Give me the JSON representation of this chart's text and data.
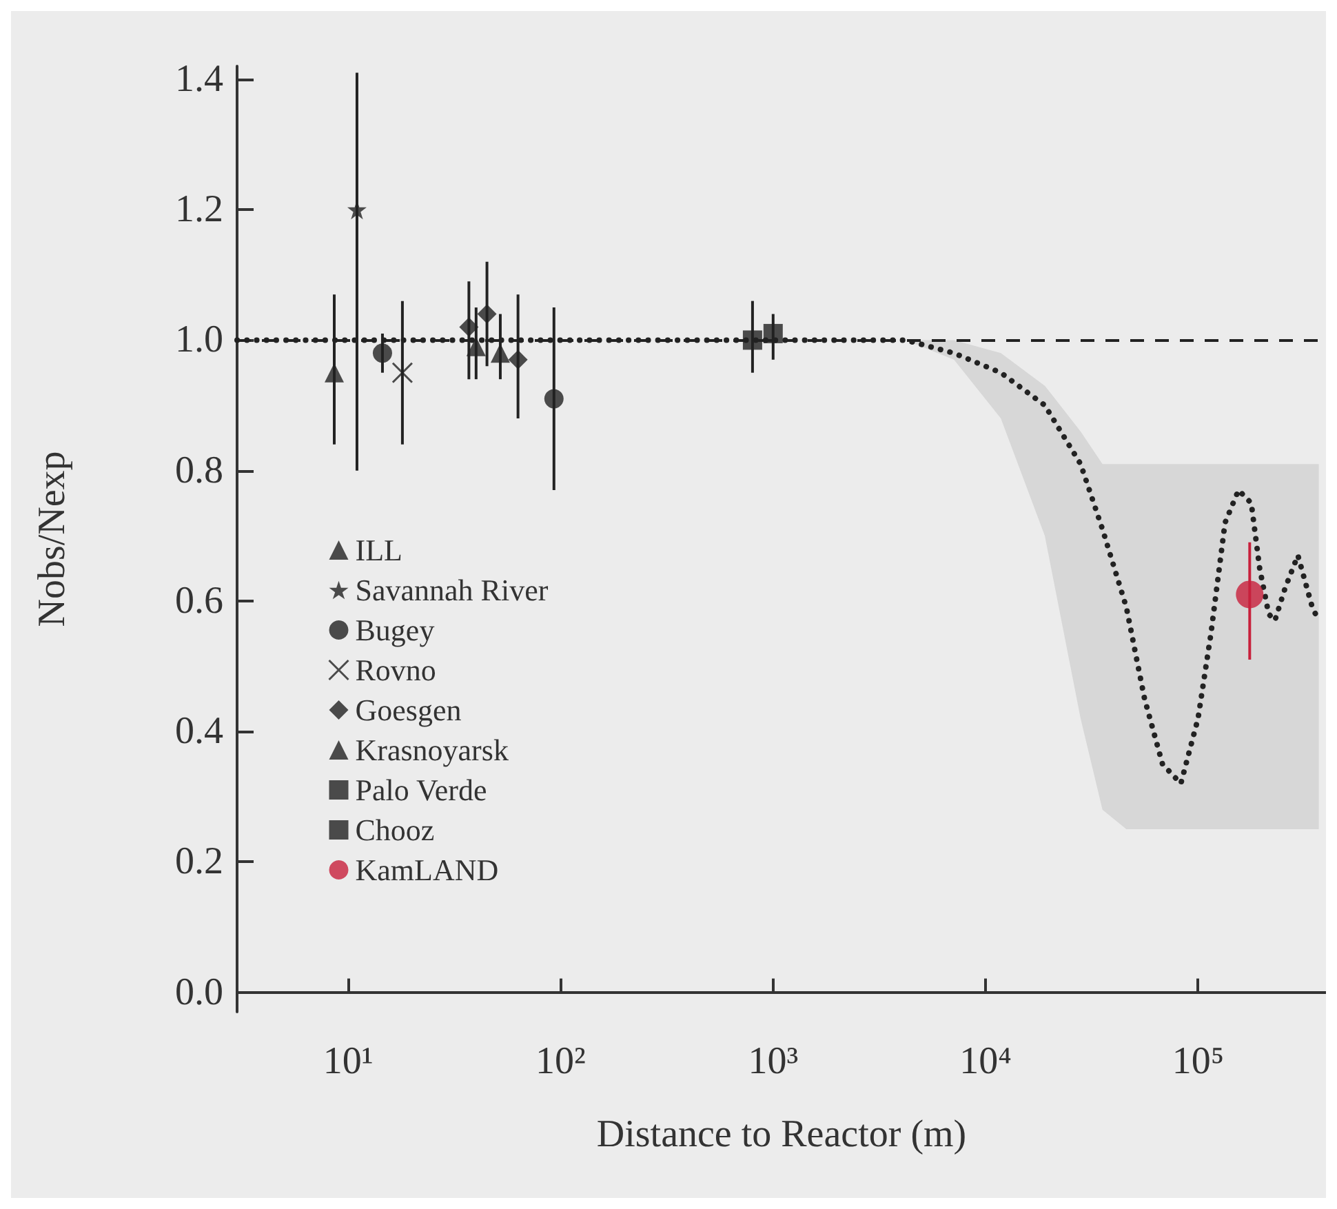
{
  "chart_data": {
    "type": "scatter",
    "xlabel": "Distance to Reactor (m)",
    "ylabel": "Nobs/Nexp",
    "log": "x",
    "xlim": [
      3,
      400000
    ],
    "xticks": [
      {
        "value": 10,
        "label": "10¹"
      },
      {
        "value": 100,
        "label": "10²"
      },
      {
        "value": 1000,
        "label": "10³"
      },
      {
        "value": 10000,
        "label": "10⁴"
      },
      {
        "value": 100000,
        "label": "10⁵"
      }
    ],
    "ylim": [
      -0.03,
      1.42
    ],
    "yticks": [
      {
        "value": 0,
        "label": "0.0"
      },
      {
        "value": 0.2,
        "label": "0.2"
      },
      {
        "value": 0.4,
        "label": "0.4"
      },
      {
        "value": 0.6,
        "label": "0.6"
      },
      {
        "value": 0.8,
        "label": "0.8"
      },
      {
        "value": 1,
        "label": "1.0"
      },
      {
        "value": 1.2,
        "label": "1.2"
      },
      {
        "value": 1.4,
        "label": "1.4"
      }
    ],
    "grid": false,
    "legend": "bottom left",
    "ref_lines": [
      {
        "axis": "y",
        "value": 1.0,
        "line_style": "dashed",
        "color": "#222222"
      }
    ],
    "series": [
      {
        "name": "ILL",
        "marker": "triangle",
        "color": "#222222",
        "x": [
          8.6
        ],
        "values": [
          0.95
        ],
        "errors": [
          [
            0.84,
            1.07
          ]
        ]
      },
      {
        "name": "Savannah River",
        "marker": "star",
        "color": "#222222",
        "x": [
          11
        ],
        "values": [
          1.2
        ],
        "errors": [
          [
            0.8,
            1.41
          ]
        ]
      },
      {
        "name": "Bugey",
        "marker": "circle",
        "color": "#222222",
        "x": [
          14.5,
          93
        ],
        "values": [
          0.98,
          0.91
        ],
        "errors": [
          [
            0.95,
            1.01
          ],
          [
            0.77,
            1.05
          ]
        ]
      },
      {
        "name": "Rovno",
        "marker": "cross",
        "color": "#222222",
        "x": [
          18
        ],
        "values": [
          0.95
        ],
        "errors": [
          [
            0.84,
            1.06
          ]
        ]
      },
      {
        "name": "Goesgen",
        "marker": "diamond",
        "color": "#222222",
        "x": [
          37,
          45,
          63
        ],
        "values": [
          1.02,
          1.04,
          0.97
        ],
        "errors": [
          [
            0.94,
            1.09
          ],
          [
            0.96,
            1.12
          ],
          [
            0.88,
            1.07
          ]
        ]
      },
      {
        "name": "Krasnoyarsk",
        "marker": "triangle",
        "color": "#222222",
        "x": [
          40,
          52
        ],
        "values": [
          0.99,
          0.98
        ],
        "errors": [
          [
            0.94,
            1.05
          ],
          [
            0.94,
            1.04
          ]
        ]
      },
      {
        "name": "Palo Verde",
        "marker": "square",
        "color": "#222222",
        "x": [
          800
        ],
        "values": [
          1.0
        ],
        "errors": [
          [
            0.95,
            1.06
          ]
        ]
      },
      {
        "name": "Chooz",
        "marker": "square",
        "color": "#222222",
        "x": [
          1000
        ],
        "values": [
          1.01
        ],
        "errors": [
          [
            0.97,
            1.04
          ]
        ]
      },
      {
        "name": "KamLAND",
        "marker": "circle",
        "color": "#c8203c",
        "x": [
          175000
        ],
        "values": [
          0.61
        ],
        "errors": [
          [
            0.51,
            0.69
          ]
        ]
      },
      {
        "type": "line",
        "line_style": "dotted",
        "marker": "none",
        "color": "#222222",
        "x": [
          3,
          1000,
          4200,
          7100,
          11800,
          19000,
          28000,
          35500,
          46000,
          56000,
          68000,
          83000,
          100000,
          115000,
          134000,
          155000,
          178000,
          195000,
          215000,
          230000,
          257000,
          295000,
          345000,
          370000
        ],
        "values": [
          1.0,
          1.0,
          1.0,
          0.98,
          0.95,
          0.9,
          0.81,
          0.71,
          0.59,
          0.45,
          0.35,
          0.32,
          0.42,
          0.55,
          0.72,
          0.77,
          0.75,
          0.65,
          0.58,
          0.57,
          0.62,
          0.67,
          0.59,
          0.57
        ],
        "lower": [
          null,
          null,
          1.0,
          0.97,
          0.88,
          0.7,
          0.42,
          0.28,
          0.25,
          0.25,
          0.25,
          0.25,
          0.25,
          0.25,
          0.25,
          0.25,
          0.25,
          0.25,
          0.25,
          0.25,
          0.25,
          0.25,
          0.25,
          0.25
        ],
        "upper": [
          null,
          null,
          1.0,
          1.0,
          0.98,
          0.93,
          0.86,
          0.81,
          0.81,
          0.81,
          0.81,
          0.81,
          0.81,
          0.81,
          0.81,
          0.81,
          0.81,
          0.81,
          0.81,
          0.81,
          0.81,
          0.81,
          0.81,
          0.81
        ]
      }
    ]
  }
}
